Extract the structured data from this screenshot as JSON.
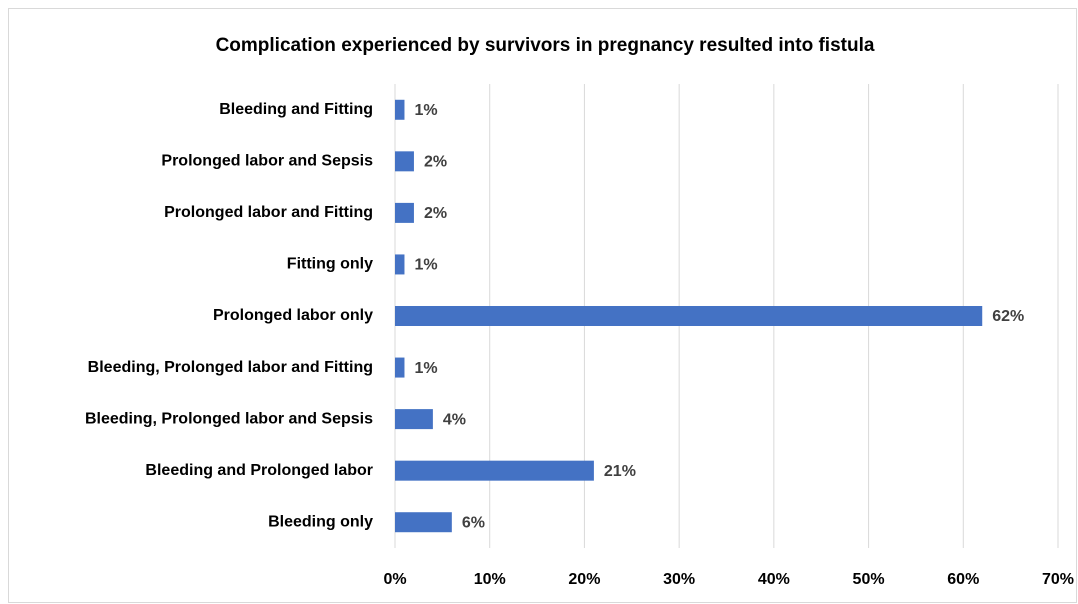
{
  "chart_data": {
    "type": "bar",
    "orientation": "horizontal",
    "title": "Complication experienced by survivors in pregnancy resulted into fistula",
    "categories": [
      "Bleeding and Fitting",
      "Prolonged labor and Sepsis",
      "Prolonged labor and Fitting",
      "Fitting only",
      "Prolonged labor only",
      "Bleeding, Prolonged labor and Fitting",
      "Bleeding, Prolonged labor and Sepsis",
      "Bleeding and Prolonged labor",
      "Bleeding only"
    ],
    "values": [
      1,
      2,
      2,
      1,
      62,
      1,
      4,
      21,
      6
    ],
    "value_labels": [
      "1%",
      "2%",
      "2%",
      "1%",
      "62%",
      "1%",
      "4%",
      "21%",
      "6%"
    ],
    "color": "#4472c4",
    "xlim": [
      0,
      70
    ],
    "xticks": [
      {
        "value": 0,
        "label": "0%"
      },
      {
        "value": 10,
        "label": "10%"
      },
      {
        "value": 20,
        "label": "20%"
      },
      {
        "value": 30,
        "label": "30%"
      },
      {
        "value": 40,
        "label": "40%"
      },
      {
        "value": 50,
        "label": "50%"
      },
      {
        "value": 60,
        "label": "60%"
      },
      {
        "value": 70,
        "label": "70%"
      }
    ],
    "grid": true
  }
}
